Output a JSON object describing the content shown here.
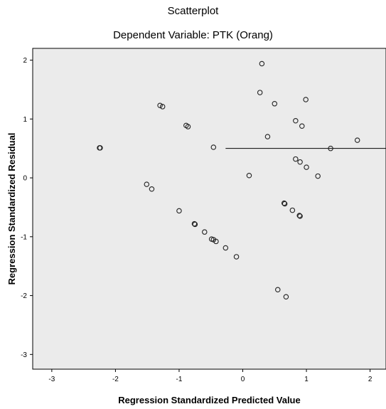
{
  "chart_data": {
    "type": "scatter",
    "title": "Scatterplot",
    "subtitle": "Dependent Variable: PTK (Orang)",
    "xlabel": "Regression Standardized Predicted Value",
    "ylabel": "Regression Standardized Residual",
    "xlim": [
      -3.3,
      2.25
    ],
    "ylim": [
      -3.25,
      2.2
    ],
    "xticks": [
      -3,
      -2,
      -1,
      0,
      1,
      2
    ],
    "yticks": [
      -3,
      -2,
      -1,
      0,
      1,
      2
    ],
    "grid": false,
    "legend": "none",
    "colors": {
      "plot_bg": "#ebebeb",
      "marker": "#222222",
      "line": "#000000"
    },
    "fit_line": {
      "x": [
        -0.27,
        2.25
      ],
      "y": [
        0.5,
        0.5
      ]
    },
    "points": [
      {
        "x": -2.25,
        "y": 0.51
      },
      {
        "x": -2.24,
        "y": 0.51
      },
      {
        "x": -1.51,
        "y": -0.11
      },
      {
        "x": -1.43,
        "y": -0.19
      },
      {
        "x": -1.3,
        "y": 1.23
      },
      {
        "x": -1.26,
        "y": 1.21
      },
      {
        "x": -1.0,
        "y": -0.56
      },
      {
        "x": -0.89,
        "y": 0.89
      },
      {
        "x": -0.86,
        "y": 0.87
      },
      {
        "x": -0.76,
        "y": -0.78
      },
      {
        "x": -0.75,
        "y": -0.79
      },
      {
        "x": -0.6,
        "y": -0.92
      },
      {
        "x": -0.49,
        "y": -1.04
      },
      {
        "x": -0.46,
        "y": -1.05
      },
      {
        "x": -0.46,
        "y": 0.52
      },
      {
        "x": -0.42,
        "y": -1.08
      },
      {
        "x": -0.27,
        "y": -1.19
      },
      {
        "x": -0.1,
        "y": -1.34
      },
      {
        "x": 0.1,
        "y": 0.04
      },
      {
        "x": 0.27,
        "y": 1.45
      },
      {
        "x": 0.3,
        "y": 1.94
      },
      {
        "x": 0.39,
        "y": 0.7
      },
      {
        "x": 0.5,
        "y": 1.26
      },
      {
        "x": 0.55,
        "y": -1.9
      },
      {
        "x": 0.65,
        "y": -0.43
      },
      {
        "x": 0.66,
        "y": -0.44
      },
      {
        "x": 0.68,
        "y": -2.02
      },
      {
        "x": 0.78,
        "y": -0.55
      },
      {
        "x": 0.83,
        "y": 0.97
      },
      {
        "x": 0.83,
        "y": 0.32
      },
      {
        "x": 0.89,
        "y": -0.64
      },
      {
        "x": 0.9,
        "y": -0.65
      },
      {
        "x": 0.9,
        "y": 0.27
      },
      {
        "x": 0.93,
        "y": 0.88
      },
      {
        "x": 0.99,
        "y": 1.33
      },
      {
        "x": 1.0,
        "y": 0.18
      },
      {
        "x": 1.18,
        "y": 0.03
      },
      {
        "x": 1.38,
        "y": 0.5
      },
      {
        "x": 1.8,
        "y": 0.64
      }
    ]
  }
}
